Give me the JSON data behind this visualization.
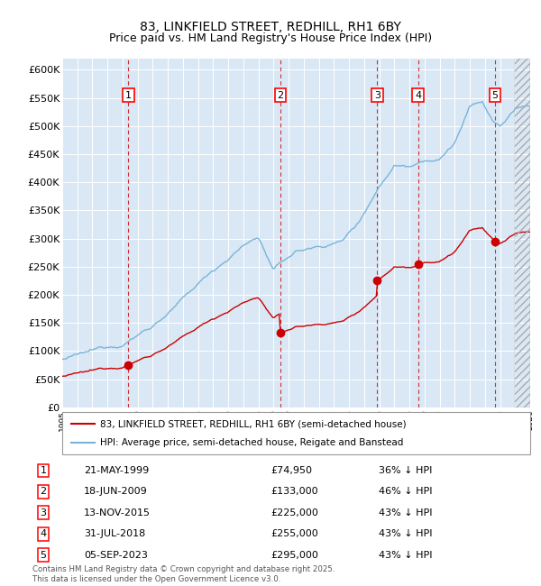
{
  "title": "83, LINKFIELD STREET, REDHILL, RH1 6BY",
  "subtitle": "Price paid vs. HM Land Registry's House Price Index (HPI)",
  "legend_line1": "83, LINKFIELD STREET, REDHILL, RH1 6BY (semi-detached house)",
  "legend_line2": "HPI: Average price, semi-detached house, Reigate and Banstead",
  "footer": "Contains HM Land Registry data © Crown copyright and database right 2025.\nThis data is licensed under the Open Government Licence v3.0.",
  "hpi_color": "#7ab4d8",
  "price_color": "#cc0000",
  "bg_color": "#dae8f5",
  "transactions": [
    {
      "num": 1,
      "date_str": "21-MAY-1999",
      "year": 1999.38,
      "price": 74950,
      "pct": "36% ↓ HPI"
    },
    {
      "num": 2,
      "date_str": "18-JUN-2009",
      "year": 2009.46,
      "price": 133000,
      "pct": "46% ↓ HPI"
    },
    {
      "num": 3,
      "date_str": "13-NOV-2015",
      "year": 2015.87,
      "price": 225000,
      "pct": "43% ↓ HPI"
    },
    {
      "num": 4,
      "date_str": "31-JUL-2018",
      "year": 2018.58,
      "price": 255000,
      "pct": "43% ↓ HPI"
    },
    {
      "num": 5,
      "date_str": "05-SEP-2023",
      "year": 2023.67,
      "price": 295000,
      "pct": "43% ↓ HPI"
    }
  ],
  "ylim": [
    0,
    620000
  ],
  "xlim": [
    1995,
    2026
  ],
  "yticks": [
    0,
    50000,
    100000,
    150000,
    200000,
    250000,
    300000,
    350000,
    400000,
    450000,
    500000,
    550000,
    600000
  ],
  "ytick_labels": [
    "£0",
    "£50K",
    "£100K",
    "£150K",
    "£200K",
    "£250K",
    "£300K",
    "£350K",
    "£400K",
    "£450K",
    "£500K",
    "£550K",
    "£600K"
  ]
}
